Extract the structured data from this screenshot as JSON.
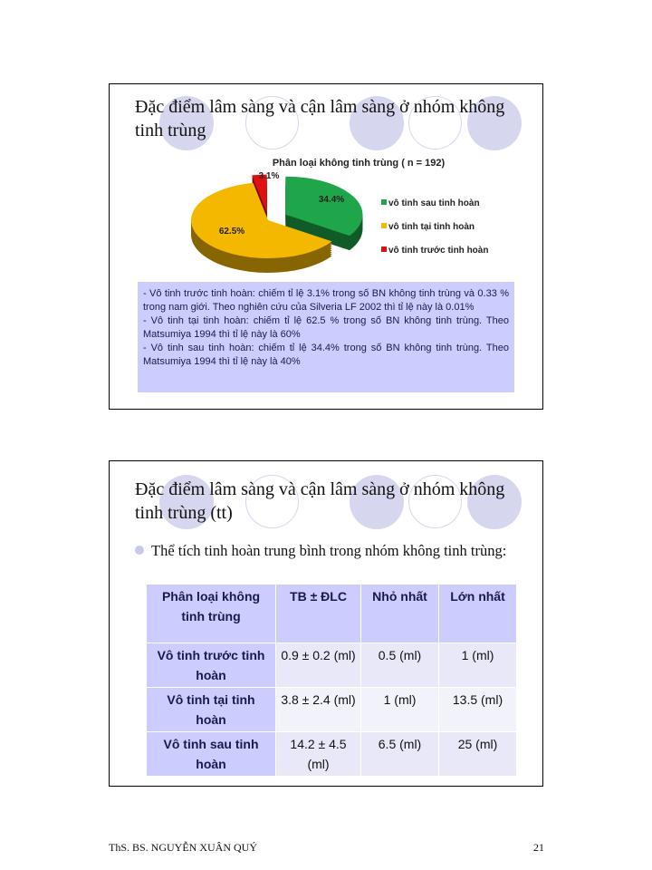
{
  "slide1": {
    "title": "Đặc điểm lâm sàng và cận lâm sàng ở nhóm không tinh trùng",
    "notes": [
      "- Vô tinh trước tinh hoàn: chiếm tỉ lệ 3.1% trong số BN không tinh trùng và 0.33 % trong nam giới. Theo nghiên cứu của Silveria LF 2002 thì tỉ lệ này là 0.01%",
      "- Vô tinh tại tinh hoàn: chiếm tỉ lệ 62.5 % trong số BN không tinh trùng. Theo Matsumiya 1994 thì tỉ lệ này là 60%",
      "- Vô tinh sau tinh hoàn: chiếm tỉ lệ 34.4% trong số BN không tinh trùng. Theo Matsumiya 1994 thì tỉ lệ này là 40%"
    ]
  },
  "chart_data": {
    "type": "pie",
    "title": "Phân loại không tinh trùng ( n = 192)",
    "legend_position": "right",
    "slices": [
      {
        "name": "vô tinh sau tinh hoàn",
        "value": 34.4,
        "label": "34.4%",
        "color": "#1fa64a"
      },
      {
        "name": "vô tinh tại tinh hoàn",
        "value": 62.5,
        "label": "62.5%",
        "color": "#f5b800"
      },
      {
        "name": "vô tinh trước tinh hoàn",
        "value": 3.1,
        "label": "3.1%",
        "color": "#e01010"
      }
    ]
  },
  "slide2": {
    "title": "Đặc điểm lâm sàng và cận lâm sàng ở nhóm không tinh trùng (tt)",
    "bullet": "Thể tích tinh hoàn trung bình trong nhóm không tinh trùng:",
    "table": {
      "headers": [
        "Phân loại không tinh trùng",
        "TB ± ĐLC",
        "Nhỏ nhất",
        "Lớn nhất"
      ],
      "rows": [
        [
          "Vô tinh trước tinh hoàn",
          "0.9 ± 0.2 (ml)",
          "0.5 (ml)",
          "1 (ml)"
        ],
        [
          "Vô tinh tại tinh hoàn",
          "3.8 ± 2.4 (ml)",
          "1 (ml)",
          "13.5 (ml)"
        ],
        [
          "Vô tinh sau tinh hoàn",
          "14.2 ± 4.5 (ml)",
          "6.5 (ml)",
          "25 (ml)"
        ]
      ]
    }
  },
  "footer": {
    "author": "ThS. BS. NGUYỄN XUÂN QUÝ",
    "page": "21"
  }
}
